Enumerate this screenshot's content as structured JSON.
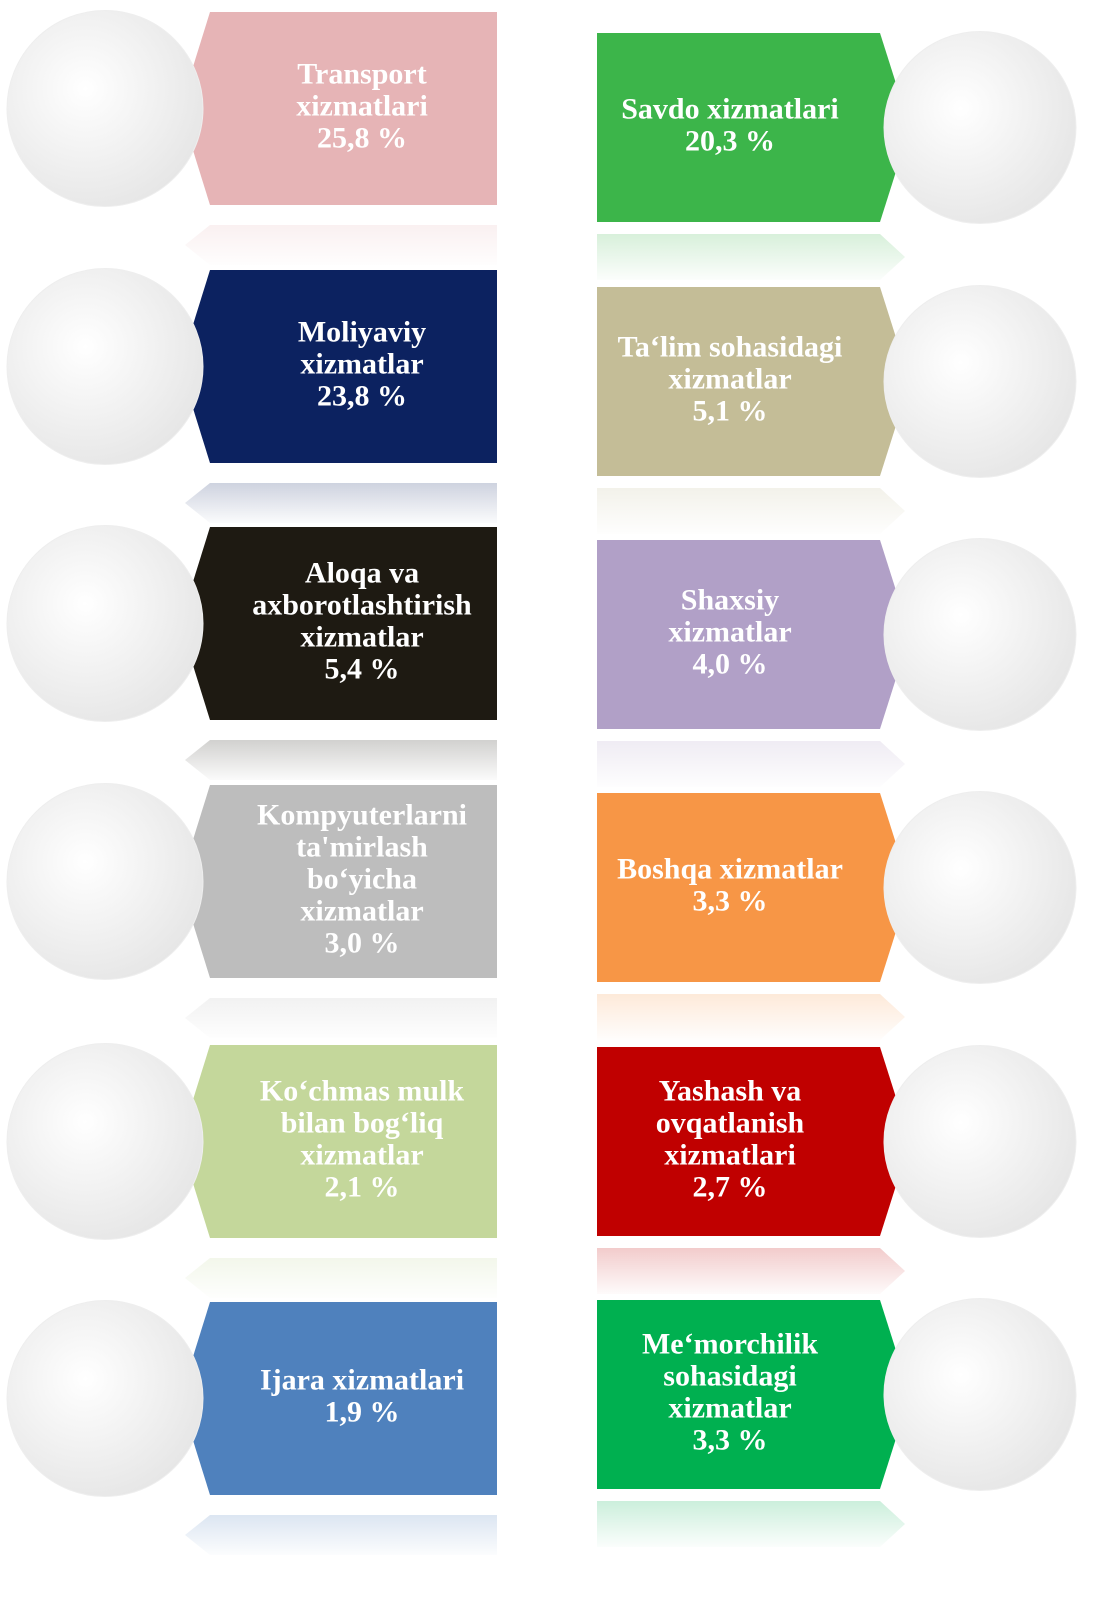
{
  "left": [
    {
      "lines": [
        "Transport",
        "xizmatlari",
        "25,8 %"
      ],
      "color": "#e6b4b6"
    },
    {
      "lines": [
        "Moliyaviy",
        "xizmatlar",
        "23,8 %"
      ],
      "color": "#0c2260"
    },
    {
      "lines": [
        "Aloqa va",
        "axborotlashtirish",
        "xizmatlar",
        "5,4 %"
      ],
      "color": "#1e1a12"
    },
    {
      "lines": [
        "Kompyuterlarni",
        "ta'mirlash",
        "bo‘yicha",
        "xizmatlar",
        "3,0 %"
      ],
      "color": "#bdbdbd"
    },
    {
      "lines": [
        "Ko‘chmas mulk",
        "bilan bog‘liq",
        "xizmatlar",
        "2,1 %"
      ],
      "color": "#c4d79b"
    },
    {
      "lines": [
        "Ijara xizmatlari",
        "1,9 %"
      ],
      "color": "#4f81bd"
    }
  ],
  "right": [
    {
      "lines": [
        "Savdo xizmatlari",
        "20,3 %"
      ],
      "color": "#3cb54a"
    },
    {
      "lines": [
        "Ta‘lim sohasidagi",
        "xizmatlar",
        "5,1 %"
      ],
      "color": "#c4bd97"
    },
    {
      "lines": [
        "Shaxsiy",
        "xizmatlar",
        "4,0 %"
      ],
      "color": "#b1a0c7"
    },
    {
      "lines": [
        "Boshqa xizmatlar",
        "3,3 %"
      ],
      "color": "#f79646"
    },
    {
      "lines": [
        "Yashash va",
        "ovqatlanish",
        "xizmatlari",
        "2,7 %"
      ],
      "color": "#c00000"
    },
    {
      "lines": [
        "Me‘morchilik",
        "sohasidagi",
        "xizmatlar",
        "3,3 %"
      ],
      "color": "#00b050"
    }
  ]
}
